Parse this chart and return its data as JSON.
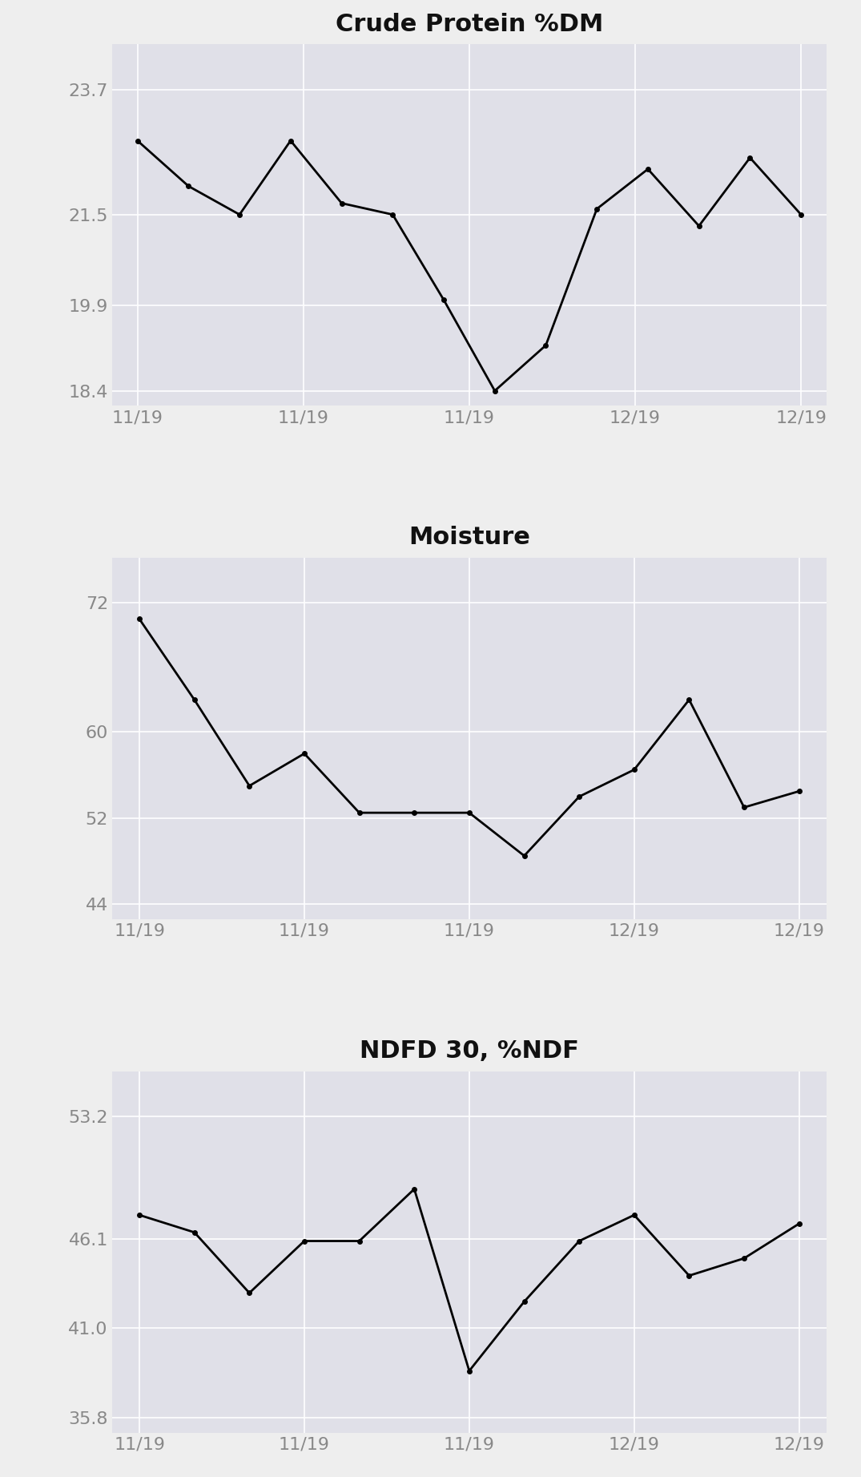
{
  "chart1": {
    "title": "Crude Protein %DM",
    "y": [
      22.8,
      22.0,
      21.5,
      22.8,
      21.7,
      21.5,
      20.0,
      18.4,
      19.2,
      21.6,
      22.3,
      21.3,
      22.5,
      21.5
    ],
    "yticks": [
      18.4,
      19.9,
      21.5,
      23.7
    ],
    "xtick_labels": [
      "11/19",
      "11/19",
      "11/19",
      "12/19",
      "12/19"
    ]
  },
  "chart2": {
    "title": "Moisture",
    "y": [
      70.5,
      63.0,
      55.0,
      58.0,
      52.5,
      52.5,
      52.5,
      48.5,
      54.0,
      56.5,
      63.0,
      53.0,
      54.5
    ],
    "yticks": [
      44,
      52,
      60,
      72
    ],
    "xtick_labels": [
      "11/19",
      "11/19",
      "11/19",
      "12/19",
      "12/19"
    ]
  },
  "chart3": {
    "title": "NDFD 30, %NDF",
    "y": [
      47.5,
      46.5,
      43.0,
      46.0,
      46.0,
      49.0,
      38.5,
      42.5,
      46.0,
      47.5,
      44.0,
      45.0,
      47.0
    ],
    "yticks": [
      35.8,
      41.0,
      46.1,
      53.2
    ],
    "xtick_labels": [
      "11/19",
      "11/19",
      "11/19",
      "12/19",
      "12/19"
    ]
  },
  "line_color": "#000000",
  "marker": "o",
  "marker_size": 4,
  "line_width": 2,
  "bg_color": "#eeeeee",
  "plot_bg_color": "#e0e0e8",
  "grid_color": "#ffffff",
  "tick_color": "#888888",
  "title_fontsize": 22,
  "tick_fontsize": 16
}
